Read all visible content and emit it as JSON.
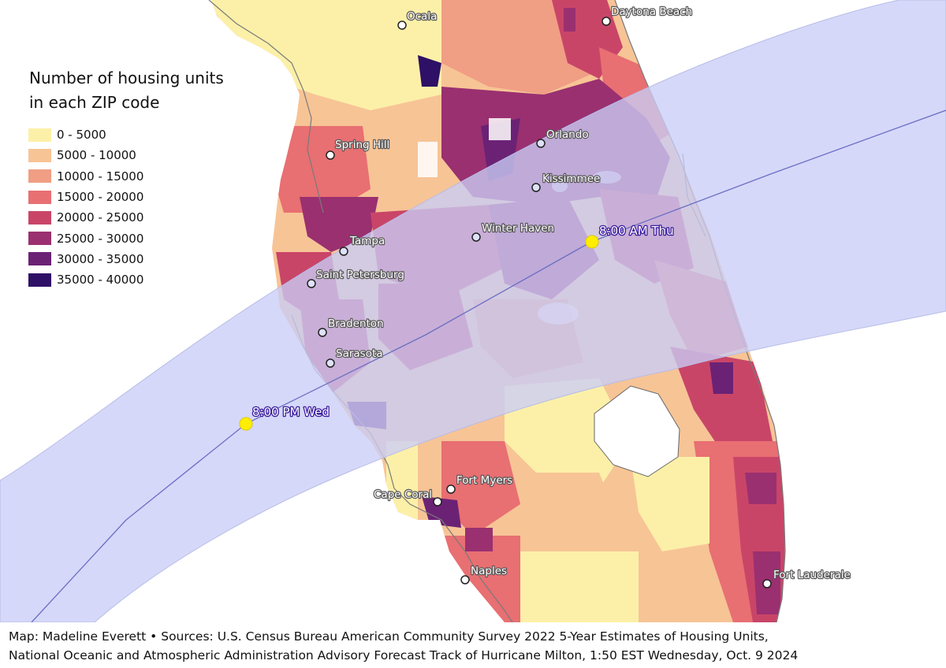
{
  "legend": {
    "title": "Number of housing units\nin each ZIP code",
    "classes": [
      {
        "label": "0 - 5000",
        "color": "#fcf0a8"
      },
      {
        "label": "5000 - 10000",
        "color": "#f7c496"
      },
      {
        "label": "10000 - 15000",
        "color": "#f09e84"
      },
      {
        "label": "15000 - 20000",
        "color": "#e86f72"
      },
      {
        "label": "20000 - 25000",
        "color": "#c94568"
      },
      {
        "label": "25000 - 30000",
        "color": "#9a3070"
      },
      {
        "label": "30000 - 35000",
        "color": "#6b2275"
      },
      {
        "label": "35000 - 40000",
        "color": "#2e1066"
      }
    ]
  },
  "cities": [
    {
      "name": "Ocala",
      "cone": false
    },
    {
      "name": "Daytona Beach",
      "cone": false
    },
    {
      "name": "Spring Hill",
      "cone": false
    },
    {
      "name": "Orlando",
      "cone": true
    },
    {
      "name": "Kissimmee",
      "cone": true
    },
    {
      "name": "Tampa",
      "cone": true
    },
    {
      "name": "Winter Haven",
      "cone": true
    },
    {
      "name": "Saint Petersburg",
      "cone": true
    },
    {
      "name": "Bradenton",
      "cone": true
    },
    {
      "name": "Sarasota",
      "cone": true
    },
    {
      "name": "Fort Myers",
      "cone": false
    },
    {
      "name": "Cape Coral",
      "cone": false
    },
    {
      "name": "Naples",
      "cone": false
    },
    {
      "name": "Fort Lauderale",
      "cone": false
    }
  ],
  "forecast": {
    "points": [
      {
        "label": "8:00 PM Wed"
      },
      {
        "label": "8:00 AM Thu"
      }
    ],
    "cone_color": "#c9cdf6",
    "track_color": "#6b6ec4",
    "point_color": "#ffee00"
  },
  "credit": {
    "line1": "Map: Madeline Everett • Sources: U.S. Census Bureau American Community Survey 2022 5-Year Estimates of Housing Units,",
    "line2": "National Oceanic and Atmospheric Administration Advisory Forecast Track of Hurricane Milton, 1:50 EST Wednesday, Oct. 9 2024"
  }
}
